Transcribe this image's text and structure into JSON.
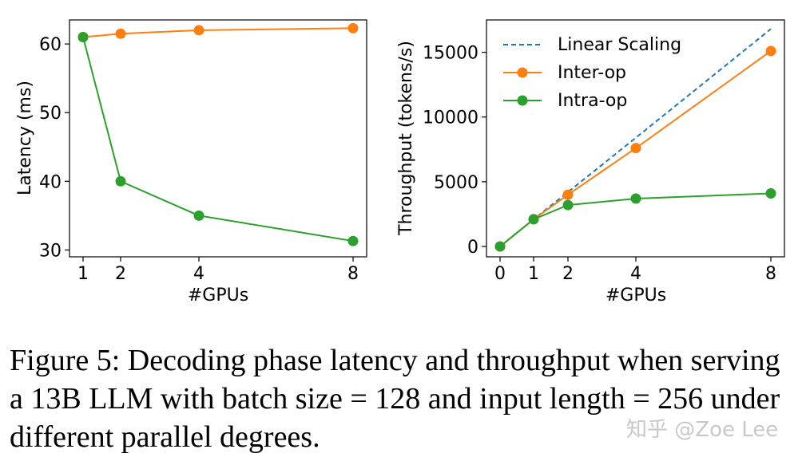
{
  "chart_data": [
    {
      "type": "line",
      "xlabel": "#GPUs",
      "ylabel": "Latency (ms)",
      "x": [
        1,
        2,
        4,
        8
      ],
      "xticks": [
        "1",
        "2",
        "4",
        "8"
      ],
      "yticks": [
        "30",
        "40",
        "50",
        "60"
      ],
      "ylim": [
        29,
        63.5
      ],
      "series": [
        {
          "key": "inter",
          "color": "#ff7f0e",
          "x": [
            1,
            2,
            4,
            8
          ],
          "values": [
            61.0,
            61.5,
            62.0,
            62.3
          ]
        },
        {
          "key": "intra",
          "color": "#2ca02c",
          "x": [
            1,
            2,
            4,
            8
          ],
          "values": [
            61.0,
            40.0,
            35.0,
            31.3
          ]
        }
      ],
      "grid": false
    },
    {
      "type": "line",
      "xlabel": "#GPUs",
      "ylabel": "Throughput (tokens/s)",
      "xticks": [
        "0",
        "1",
        "2",
        "4",
        "8"
      ],
      "yticks": [
        "0",
        "5000",
        "10000",
        "15000"
      ],
      "ylim": [
        -800,
        17500
      ],
      "legend_position": "top-left",
      "series": [
        {
          "key": "linear",
          "name": "Linear Scaling",
          "color": "#1f77b4",
          "style": "dashed",
          "x": [
            0,
            1,
            2,
            4,
            8
          ],
          "values": [
            0,
            2100,
            4200,
            8400,
            16800
          ]
        },
        {
          "key": "inter",
          "name": "Inter-op",
          "color": "#ff7f0e",
          "x": [
            0,
            1,
            2,
            4,
            8
          ],
          "values": [
            0,
            2100,
            4000,
            7600,
            15100
          ]
        },
        {
          "key": "intra",
          "name": "Intra-op",
          "color": "#2ca02c",
          "x": [
            0,
            1,
            2,
            4,
            8
          ],
          "values": [
            0,
            2100,
            3200,
            3700,
            4100
          ]
        }
      ],
      "grid": false
    }
  ],
  "caption": "Figure 5: Decoding phase latency and throughput when serving a 13B LLM with batch size = 128 and input length = 256 under different parallel degrees.",
  "watermark": "知乎 @Zoe Lee"
}
